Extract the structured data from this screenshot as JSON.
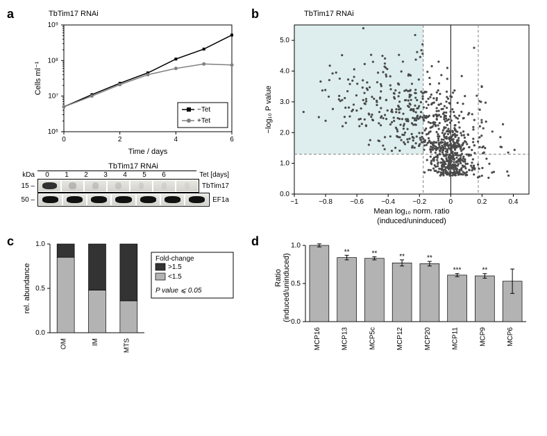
{
  "panel_a": {
    "label": "a",
    "subtitle": "TbTim17 RNAi",
    "growth_chart": {
      "type": "line",
      "xlabel": "Time / days",
      "ylabel": "Cells ml⁻¹",
      "xlim": [
        0,
        6
      ],
      "xtick_step": 2,
      "yscale": "log",
      "ylim": [
        1000000.0,
        1000000000.0
      ],
      "yticks": [
        1000000.0,
        10000000.0,
        100000000.0,
        1000000000.0
      ],
      "ytick_labels": [
        "10⁶",
        "10⁷",
        "10⁸",
        "10⁹"
      ],
      "series": [
        {
          "name": "−Tet",
          "color": "#000000",
          "marker": "square",
          "x": [
            0,
            1,
            2,
            3,
            4,
            5,
            6
          ],
          "y": [
            5000000.0,
            11000000.0,
            23000000.0,
            45000000.0,
            110000000.0,
            210000000.0,
            520000000.0
          ]
        },
        {
          "name": "+Tet",
          "color": "#808080",
          "marker": "circle",
          "x": [
            0,
            1,
            2,
            3,
            4,
            5,
            6
          ],
          "y": [
            5000000.0,
            10000000.0,
            21000000.0,
            40000000.0,
            60000000.0,
            80000000.0,
            75000000.0
          ]
        }
      ],
      "legend_pos": "bottom-right",
      "background_color": "#ffffff",
      "line_width": 1.5,
      "marker_size": 4
    },
    "blot": {
      "title": "TbTim17 RNAi",
      "header": "Tet [days]",
      "lanes": [
        "0",
        "1",
        "2",
        "3",
        "4",
        "5",
        "6"
      ],
      "rows": [
        {
          "kda": "15 –",
          "name": "TbTim17",
          "bands": [
            {
              "intensity": 0.95,
              "color": "#2a2a2a"
            },
            {
              "intensity": 0.25,
              "color": "#7e7e7e"
            },
            {
              "intensity": 0.18,
              "color": "#8a8a8a"
            },
            {
              "intensity": 0.15,
              "color": "#969696"
            },
            {
              "intensity": 0.1,
              "color": "#a4a4a4"
            },
            {
              "intensity": 0.08,
              "color": "#aaaaaa"
            },
            {
              "intensity": 0.05,
              "color": "#b4b4b4"
            }
          ]
        },
        {
          "kda": "50 –",
          "name": "EF1a",
          "bands": [
            {
              "intensity": 1.0,
              "color": "#111111"
            },
            {
              "intensity": 1.0,
              "color": "#111111"
            },
            {
              "intensity": 1.0,
              "color": "#111111"
            },
            {
              "intensity": 1.0,
              "color": "#111111"
            },
            {
              "intensity": 1.0,
              "color": "#111111"
            },
            {
              "intensity": 1.0,
              "color": "#111111"
            },
            {
              "intensity": 1.0,
              "color": "#111111"
            }
          ]
        }
      ],
      "kda_header": "kDa"
    }
  },
  "panel_b": {
    "label": "b",
    "subtitle": "TbTim17 RNAi",
    "chart": {
      "type": "scatter",
      "xlabel_top": "Mean log₁₀ norm. ratio",
      "xlabel_bottom": "(induced/uninduced)",
      "ylabel": "−log₁₀ P value",
      "xlim": [
        -1.0,
        0.5
      ],
      "xticks": [
        -1.0,
        -0.8,
        -0.6,
        -0.4,
        -0.2,
        0,
        0.2,
        0.4
      ],
      "ylim": [
        0,
        5.5
      ],
      "yticks": [
        0,
        1.0,
        2.0,
        3.0,
        4.0,
        5.0
      ],
      "threshold_x_neg": -0.176,
      "threshold_x_pos": 0.176,
      "threshold_y": 1.3,
      "highlight_fill": "#d8ebeb",
      "highlight_opacity": 0.85,
      "point_color": "#4a4a4a",
      "point_radius": 1.6,
      "dash_color": "#808080",
      "n_points": 900
    }
  },
  "panel_c": {
    "label": "c",
    "chart": {
      "type": "stacked-bar",
      "ylabel": "rel. abundance",
      "ylim": [
        0,
        1.0
      ],
      "ytick_step": 0.5,
      "categories": [
        "OM",
        "IM",
        "MTS"
      ],
      "colors": {
        "low": "#b3b3b3",
        "high": "#333333"
      },
      "values_low": [
        0.85,
        0.48,
        0.36
      ],
      "values_high": [
        0.15,
        0.52,
        0.64
      ],
      "bar_width": 0.55,
      "legend": {
        "title": "Fold-change",
        "items": [
          {
            "label": ">1.5",
            "color": "#333333"
          },
          {
            "label": "<1.5",
            "color": "#b3b3b3"
          }
        ],
        "footer": "P value ⩽ 0.05"
      }
    }
  },
  "panel_d": {
    "label": "d",
    "chart": {
      "type": "bar",
      "ylabel_top": "Ratio",
      "ylabel_bottom": "(induced/uninduced)",
      "ylim": [
        0,
        1.0
      ],
      "ytick_step": 0.5,
      "categories": [
        "MCP16",
        "MCP13",
        "MCP5c",
        "MCP12",
        "MCP20",
        "MCP11",
        "MCP9",
        "MCP6"
      ],
      "values": [
        1.0,
        0.84,
        0.83,
        0.77,
        0.76,
        0.61,
        0.6,
        0.53
      ],
      "errors": [
        0.02,
        0.03,
        0.02,
        0.04,
        0.03,
        0.02,
        0.03,
        0.16
      ],
      "sig": [
        "",
        "**",
        "**",
        "**",
        "**",
        "***",
        "**",
        ""
      ],
      "bar_color": "#b3b3b3",
      "bar_width": 0.7
    }
  }
}
